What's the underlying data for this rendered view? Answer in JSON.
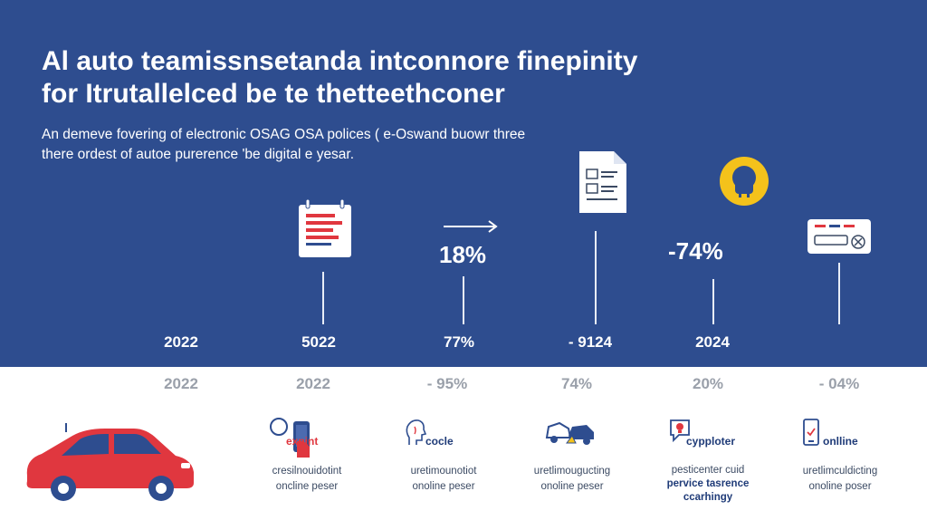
{
  "title": {
    "line1": "Al auto teamissnsetanda intconnore finepinity",
    "line2": "for Itrutallelced be te thetteethconer"
  },
  "subtitle": {
    "line1": "An demeve fovering of electronic OSAG OSA polices ( e-Oswand buowr three",
    "line2": "there ordest of autoe purerence 'be digital e yesar."
  },
  "top_stats": [
    {
      "label": "18%"
    },
    {
      "label": "-74%"
    }
  ],
  "top_years": [
    "2022",
    "5022",
    "77%",
    "- 9124",
    "2024"
  ],
  "lower_values": [
    "2022",
    "2022",
    "- 95%",
    "74%",
    "20%",
    "- 04%"
  ],
  "features": [
    {
      "label": "exnint",
      "caption": [
        "cresilnouidotint",
        "oncline peser"
      ]
    },
    {
      "label": "cocle",
      "caption": [
        "uretimounotiot",
        "onoline peser"
      ]
    },
    {
      "label": "",
      "caption": [
        "uretlimougucting",
        "onoline peser"
      ]
    },
    {
      "label": "cypploter",
      "caption": [
        "pesticenter cuid",
        "pervice tasrence",
        "ccarhingy"
      ]
    },
    {
      "label": "onlline",
      "caption": [
        "uretlimculdicting",
        "onoline poser"
      ]
    }
  ],
  "colors": {
    "navy": "#2e4d8f",
    "red": "#e0373f",
    "yellow": "#f4c21b",
    "light_line": "#e8edf7"
  },
  "icons": [
    "document-chart-icon",
    "arrow-right-icon",
    "form-document-icon",
    "plug-badge-icon",
    "card-close-icon",
    "car-icon",
    "phone-touch-icon",
    "face-profile-icon",
    "car-crash-icon",
    "chat-lightbulb-icon",
    "mobile-check-icon"
  ]
}
